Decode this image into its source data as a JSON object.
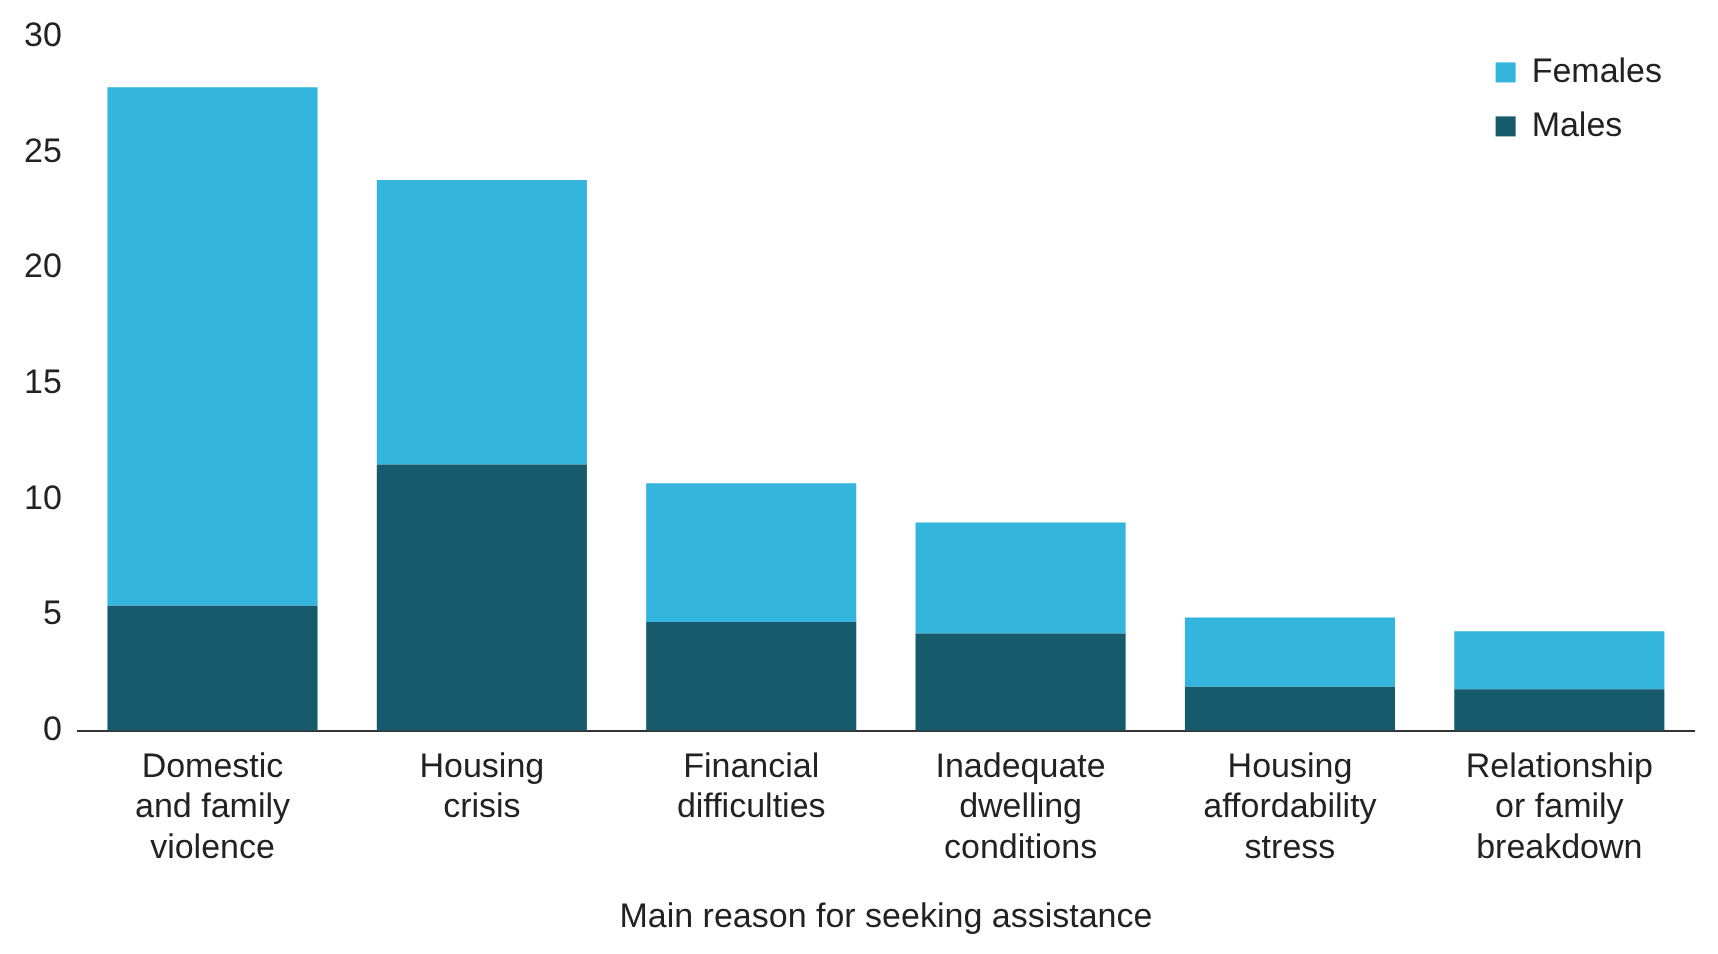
{
  "chart_data": {
    "type": "bar",
    "stacked": true,
    "xlabel": "Main reason for seeking assistance",
    "categories": [
      "Domestic and family violence",
      "Housing crisis",
      "Financial difficulties",
      "Inadequate dwelling conditions",
      "Housing affordability stress",
      "Relationship or family breakdown"
    ],
    "series": [
      {
        "name": "Males",
        "color": "#175a6c",
        "values": [
          5.4,
          11.5,
          4.7,
          4.2,
          1.9,
          1.8
        ]
      },
      {
        "name": "Females",
        "color": "#33b5dd",
        "values": [
          22.4,
          12.3,
          6.0,
          4.8,
          3.0,
          2.5
        ]
      }
    ],
    "ylim": [
      0,
      30
    ],
    "yticks": [
      0,
      5,
      10,
      15,
      20,
      25,
      30
    ],
    "grid": false,
    "legend": "top right"
  }
}
